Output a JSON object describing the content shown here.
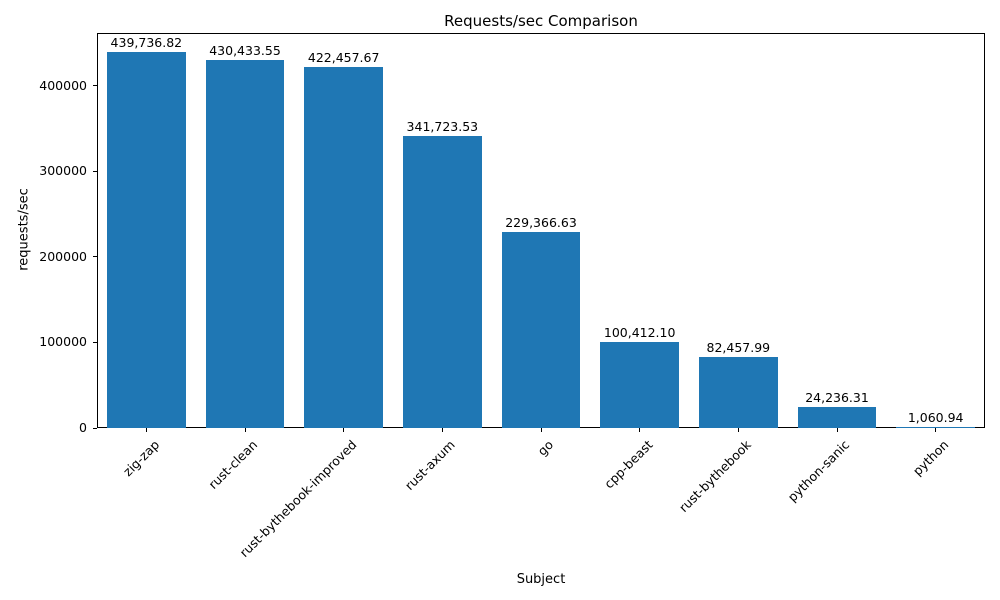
{
  "chart_data": {
    "type": "bar",
    "title": "Requests/sec Comparison",
    "xlabel": "Subject",
    "ylabel": "requests/sec",
    "categories": [
      "zig-zap",
      "rust-clean",
      "rust-bythebook-improved",
      "rust-axum",
      "go",
      "cpp-beast",
      "rust-bythebook",
      "python-sanic",
      "python"
    ],
    "values": [
      439736.82,
      430433.55,
      422457.67,
      341723.53,
      229366.63,
      100412.1,
      82457.99,
      24236.31,
      1060.94
    ],
    "value_labels": [
      "439,736.82",
      "430,433.55",
      "422,457.67",
      "341,723.53",
      "229,366.63",
      "100,412.10",
      "82,457.99",
      "24,236.31",
      "1,060.94"
    ],
    "ytick_values": [
      0,
      100000,
      200000,
      300000,
      400000
    ],
    "ytick_labels": [
      "0",
      "100000",
      "200000",
      "300000",
      "400000"
    ],
    "ylim": [
      0,
      461723.66
    ],
    "grid": false,
    "legend": null,
    "bar_color": "#1f77b4",
    "bar_width_fraction": 0.8
  }
}
